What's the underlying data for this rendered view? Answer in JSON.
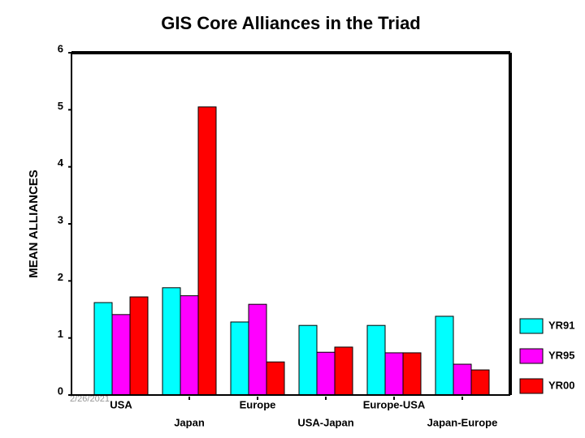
{
  "chart_data": {
    "type": "bar",
    "title": "GIS Core Alliances in the Triad",
    "y_label": "MEAN ALLIANCES",
    "date": "2/26/2021",
    "categories": [
      "USA",
      "Japan",
      "Europe",
      "USA-Japan",
      "Europe-USA",
      "Japan-Europe"
    ],
    "series": [
      {
        "name": "YR91",
        "color": "#00ffff",
        "values": [
          1.62,
          1.88,
          1.28,
          1.22,
          1.22,
          1.38
        ]
      },
      {
        "name": "YR95",
        "color": "#ff00ff",
        "values": [
          1.41,
          1.74,
          1.59,
          0.75,
          0.74,
          0.54
        ]
      },
      {
        "name": "YR00",
        "color": "#ff0000",
        "values": [
          1.72,
          5.05,
          0.58,
          0.84,
          0.74,
          0.44
        ]
      }
    ],
    "ylim": [
      0,
      6
    ],
    "yticks": [
      0,
      1,
      2,
      3,
      4,
      5,
      6
    ],
    "grid": false,
    "legend": "right"
  }
}
